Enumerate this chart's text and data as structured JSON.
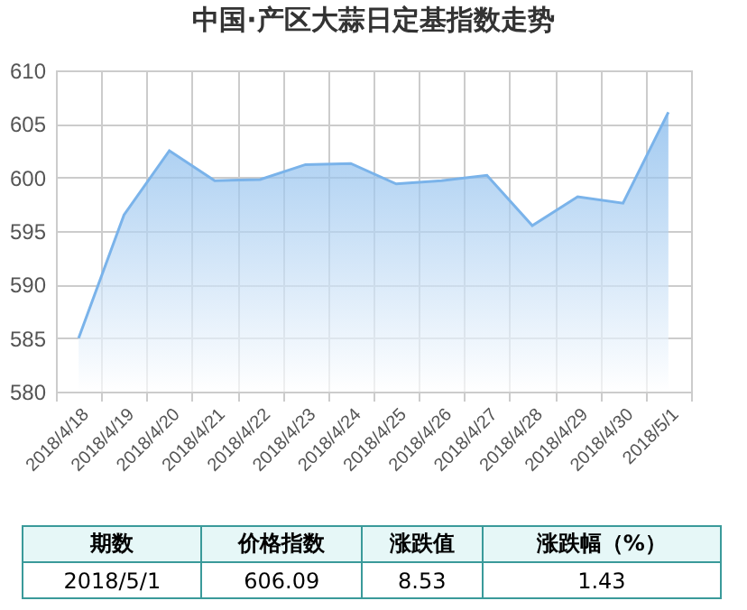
{
  "chart_data": {
    "type": "area",
    "title": "中国·产区大蒜日定基指数走势",
    "categories": [
      "2018/4/18",
      "2018/4/19",
      "2018/4/20",
      "2018/4/21",
      "2018/4/22",
      "2018/4/23",
      "2018/4/24",
      "2018/4/25",
      "2018/4/26",
      "2018/4/27",
      "2018/4/28",
      "2018/4/29",
      "2018/4/30",
      "2018/5/1"
    ],
    "values": [
      585,
      596.5,
      602.5,
      599.7,
      599.8,
      601.2,
      601.3,
      599.4,
      599.7,
      600.2,
      595.5,
      598.2,
      597.6,
      606.09
    ],
    "color": "#7ab3ea",
    "ylim": [
      580,
      610
    ],
    "yticks": [
      580,
      585,
      590,
      595,
      600,
      605,
      610
    ],
    "grid": true,
    "annotations": [
      "期数",
      "价格指数",
      "涨跌值",
      "涨跌幅（%）",
      "2018/5/1",
      "606.09",
      "8.53",
      "1.43"
    ]
  }
}
